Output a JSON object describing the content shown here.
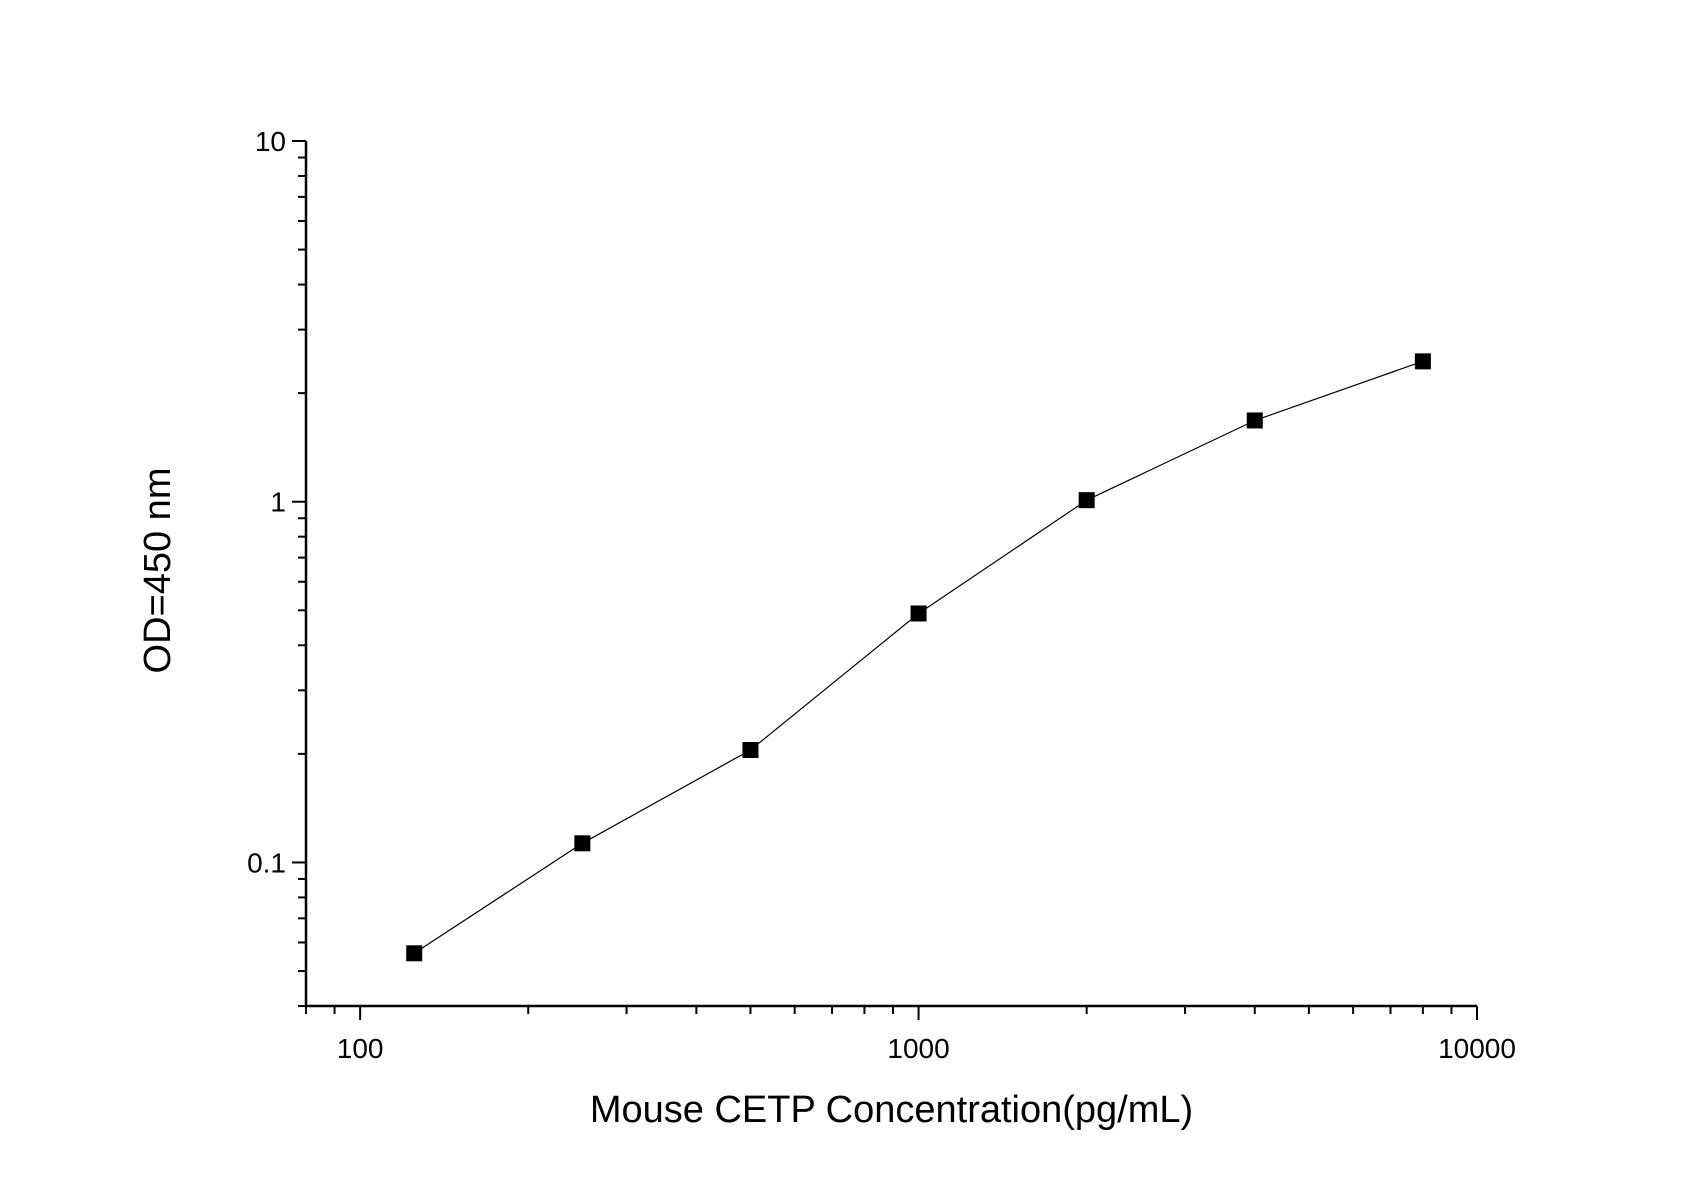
{
  "chart_data": {
    "type": "line",
    "title": "",
    "xlabel": "Mouse CETP Concentration(pg/mL)",
    "ylabel": "OD=450 nm",
    "xscale": "log",
    "yscale": "log",
    "xlim": [
      80,
      10000
    ],
    "ylim": [
      0.04,
      10
    ],
    "x_ticks": [
      100,
      1000,
      10000
    ],
    "x_tick_labels": [
      "100",
      "1000",
      "10000"
    ],
    "y_ticks": [
      0.1,
      1,
      10
    ],
    "y_tick_labels": [
      "0.1",
      "1",
      "10"
    ],
    "grid": false,
    "legend": "none",
    "marker": "square",
    "color": "#000000",
    "series": [
      {
        "x": [
          125,
          250,
          500,
          1000,
          2000,
          4000,
          8000
        ],
        "y": [
          0.056,
          0.113,
          0.205,
          0.49,
          1.01,
          1.68,
          2.45
        ]
      }
    ]
  }
}
